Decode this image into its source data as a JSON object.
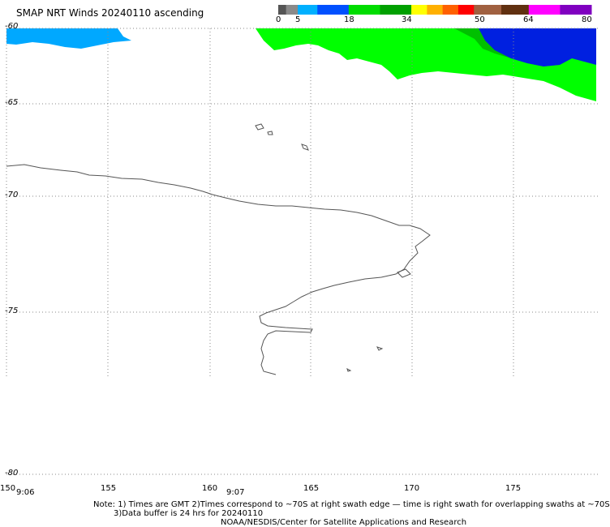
{
  "title": "SMAP NRT Winds 20240110 ascending",
  "colorbar": {
    "segments": [
      {
        "from": 0,
        "to": 2,
        "color": "#555555"
      },
      {
        "from": 2,
        "to": 5,
        "color": "#8a8a8a"
      },
      {
        "from": 5,
        "to": 10,
        "color": "#00b0ff"
      },
      {
        "from": 10,
        "to": 18,
        "color": "#0050ff"
      },
      {
        "from": 18,
        "to": 26,
        "color": "#00dd00"
      },
      {
        "from": 26,
        "to": 34,
        "color": "#00a000"
      },
      {
        "from": 34,
        "to": 38,
        "color": "#ffff00"
      },
      {
        "from": 38,
        "to": 42,
        "color": "#ffb000"
      },
      {
        "from": 42,
        "to": 46,
        "color": "#ff6000"
      },
      {
        "from": 46,
        "to": 50,
        "color": "#ff0000"
      },
      {
        "from": 50,
        "to": 57,
        "color": "#a06040"
      },
      {
        "from": 57,
        "to": 64,
        "color": "#603010"
      },
      {
        "from": 64,
        "to": 72,
        "color": "#ff00ff"
      },
      {
        "from": 72,
        "to": 80,
        "color": "#8000c0"
      }
    ],
    "labels": [
      "0",
      "5",
      "18",
      "34",
      "50",
      "64",
      "80"
    ]
  },
  "lat_labels": [
    "-60",
    "-65",
    "-70",
    "-75",
    "-80"
  ],
  "lon_labels": [
    "150",
    "155",
    "160",
    "165",
    "170",
    "175"
  ],
  "time_labels": [
    "9:06",
    "9:07"
  ],
  "note_lines": [
    "Note: 1) Times are GMT 2)Times correspond to ~70S at right swath edge — time is right swath for overlapping swaths at ~70S",
    "3)Data buffer is 24 hrs for 20240110",
    "NOAA/NESDIS/Center for Satellite Applications and Research"
  ],
  "colors": {
    "wind_light_blue": "#00a8ff",
    "wind_green": "#00ff00",
    "wind_dark_green": "#00c000",
    "wind_blue": "#0020e0",
    "coastline": "#555555",
    "grid": "#888888"
  }
}
